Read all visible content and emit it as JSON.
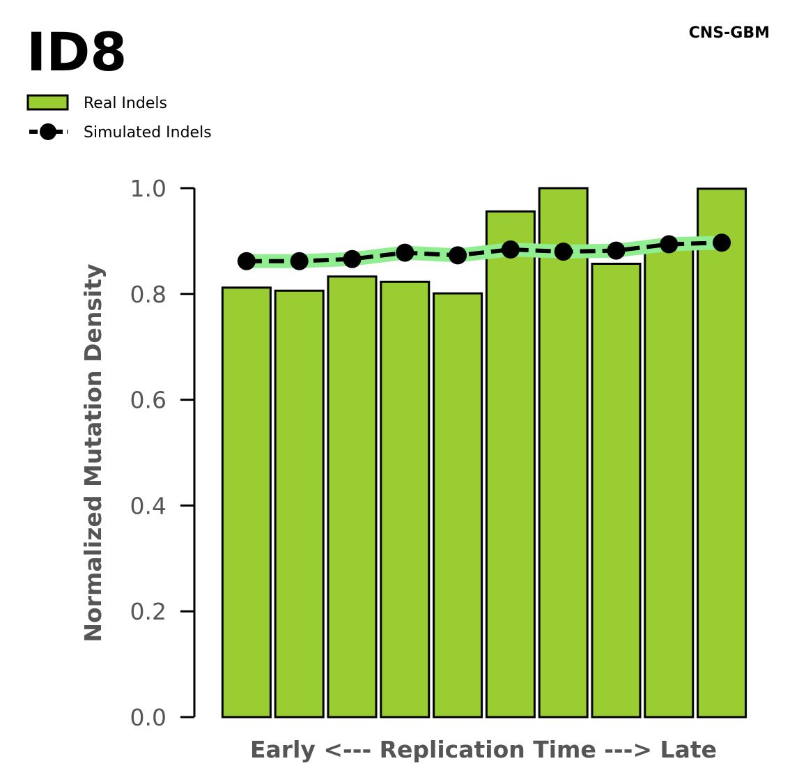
{
  "chart_data": {
    "type": "bar",
    "title": "ID8",
    "subtitle": "CNS-GBM",
    "xlabel": "Early <--- Replication Time ---> Late",
    "ylabel": "Normalized Mutation Density",
    "ylim": [
      0,
      1.0
    ],
    "yticks": [
      "0.0",
      "0.2",
      "0.4",
      "0.6",
      "0.8",
      "1.0"
    ],
    "grid": false,
    "legend_position": "top-left",
    "series": [
      {
        "name": "Real Indels",
        "kind": "bar",
        "color": "#9acd32",
        "edge_color": "#000000",
        "values": [
          0.812,
          0.806,
          0.833,
          0.823,
          0.801,
          0.956,
          1.0,
          0.857,
          0.893,
          0.999
        ]
      },
      {
        "name": "Simulated Indels",
        "kind": "line",
        "color": "#000000",
        "band_color": "#90ee90",
        "line_style": "dashed",
        "values": [
          0.862,
          0.862,
          0.866,
          0.878,
          0.873,
          0.884,
          0.88,
          0.882,
          0.894,
          0.897
        ]
      }
    ]
  }
}
